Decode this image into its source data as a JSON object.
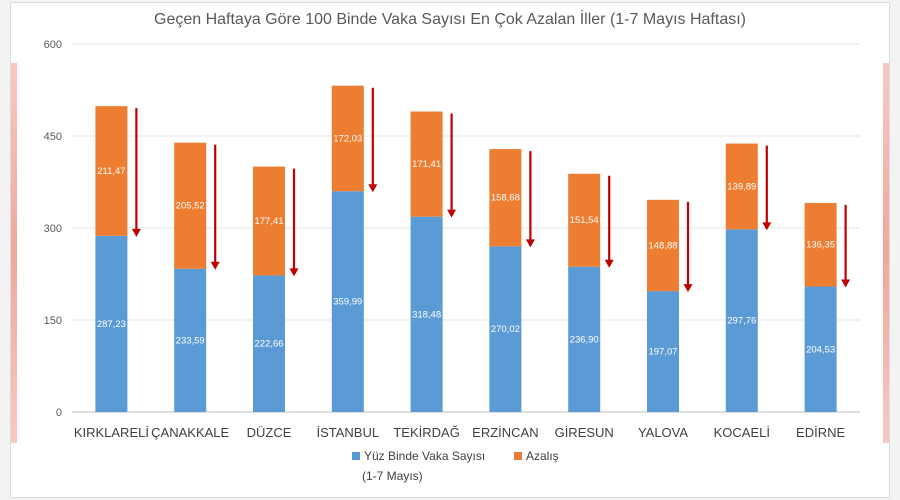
{
  "chart_data": {
    "type": "bar",
    "stacked": true,
    "title": "Geçen Haftaya Göre 100 Binde Vaka Sayısı En Çok Azalan İller (1-7 Mayıs Haftası)",
    "categories": [
      "KIRKLARELİ",
      "ÇANAKKALE",
      "DÜZCE",
      "İSTANBUL",
      "TEKİRDAĞ",
      "ERZİNCAN",
      "GİRESUN",
      "YALOVA",
      "KOCAELİ",
      "EDİRNE"
    ],
    "series": [
      {
        "name": "Yüz Binde Vaka Sayısı (1-7 Mayıs)",
        "legend_lines": [
          "Yüz Binde Vaka Sayısı",
          "(1-7 Mayıs)"
        ],
        "color": "#5b9bd5",
        "values": [
          287.23,
          233.59,
          222.66,
          359.99,
          318.48,
          270.02,
          236.9,
          197.07,
          297.76,
          204.53
        ],
        "labels": [
          "287,23",
          "233,59",
          "222,66",
          "359,99",
          "318,48",
          "270,02",
          "236,90",
          "197,07",
          "297,76",
          "204,53"
        ]
      },
      {
        "name": "Azalış",
        "color": "#ed7d31",
        "values": [
          211.47,
          205.52,
          177.41,
          172.03,
          171.41,
          158.68,
          151.54,
          148.88,
          139.89,
          136.35
        ],
        "labels": [
          "211,47",
          "205,52",
          "177,41",
          "172,03",
          "171,41",
          "158,68",
          "151,54",
          "148,88",
          "139,89",
          "136,35"
        ]
      }
    ],
    "ylim": [
      0,
      600
    ],
    "yticks": [
      0,
      150,
      300,
      450,
      600
    ],
    "grid": true,
    "legend": "bottom",
    "annotation": "red downward arrow beside each bar spanning the Azalış segment",
    "arrow_color": "#c00000"
  }
}
